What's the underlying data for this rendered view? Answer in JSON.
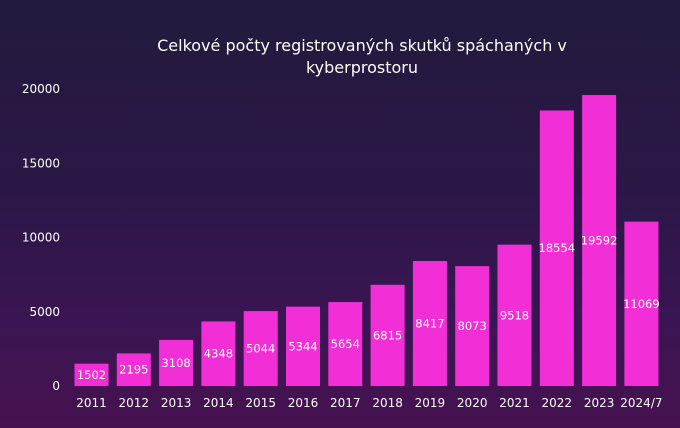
{
  "chart_data": {
    "type": "bar",
    "title_lines": [
      "Celkové počty registrovaných skutků spáchaných v",
      "kyberprostoru"
    ],
    "xlabel": "",
    "ylabel": "",
    "categories": [
      "2011",
      "2012",
      "2013",
      "2014",
      "2015",
      "2016",
      "2017",
      "2018",
      "2019",
      "2020",
      "2021",
      "2022",
      "2023",
      "2024/7"
    ],
    "values": [
      1502,
      2195,
      3108,
      4348,
      5044,
      5344,
      5654,
      6815,
      8417,
      8073,
      9518,
      18554,
      19592,
      11069
    ],
    "ylim": [
      0,
      20000
    ],
    "yticks": [
      "0",
      "5000",
      "10000",
      "15000",
      "20000"
    ],
    "grid": false,
    "legend": "none",
    "bar_color": "#f22fd6"
  }
}
